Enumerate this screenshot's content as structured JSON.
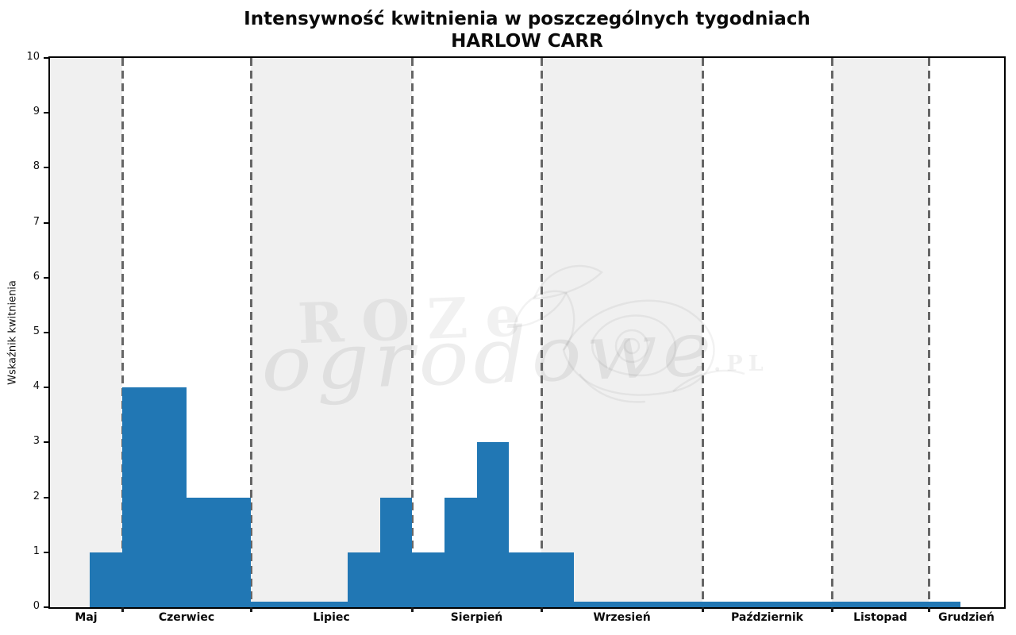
{
  "title": {
    "line1": "Intensywność kwitnienia w poszczególnych tygodniach",
    "line2": "HARLOW CARR"
  },
  "watermark": {
    "word1": "ROZe",
    "word2": "ogrodowe",
    "suffix": ".PL"
  },
  "chart_data": {
    "type": "bar",
    "title": "Intensywność kwitnienia w poszczególnych tygodniach — HARLOW CARR",
    "xlabel": "",
    "ylabel": "Wskaźnik kwitnienia",
    "ylim": [
      0,
      10
    ],
    "y_ticks": [
      0,
      1,
      2,
      3,
      4,
      5,
      6,
      7,
      8,
      9,
      10
    ],
    "grid": "vertical dashed lines at month boundaries, alternating shaded month bands",
    "legend": "none",
    "bin_unit": "week",
    "weekly_values": [
      1,
      4,
      4,
      2,
      2,
      0.1,
      0.1,
      0.1,
      1,
      2,
      1,
      2,
      3,
      1,
      1,
      0.1,
      0.1,
      0.1,
      0.1,
      0.1,
      0.1,
      0.1,
      0.1,
      0.1,
      0.1,
      0.1,
      0.1
    ],
    "months": [
      {
        "label": "Maj",
        "start_week": -1.23,
        "end_week": 1,
        "shaded": true
      },
      {
        "label": "Czerwiec",
        "start_week": 1,
        "end_week": 5,
        "shaded": false
      },
      {
        "label": "Lipiec",
        "start_week": 5,
        "end_week": 10,
        "shaded": true
      },
      {
        "label": "Sierpień",
        "start_week": 10,
        "end_week": 14,
        "shaded": false
      },
      {
        "label": "Wrzesień",
        "start_week": 14,
        "end_week": 19,
        "shaded": true
      },
      {
        "label": "Październik",
        "start_week": 19,
        "end_week": 23,
        "shaded": false
      },
      {
        "label": "Listopad",
        "start_week": 23,
        "end_week": 26,
        "shaded": true
      },
      {
        "label": "Grudzień",
        "start_week": 26,
        "end_week": 28.36,
        "shaded": false
      }
    ],
    "month_boundaries_weeks": [
      1,
      5,
      10,
      14,
      19,
      23,
      26
    ]
  },
  "colors": {
    "bar": "#2177b4",
    "shaded_band": "#f0f0f0",
    "plain_band": "#ffffff",
    "dashed_line": "#666666",
    "axis": "#000000",
    "text": "#0a0a0a"
  }
}
